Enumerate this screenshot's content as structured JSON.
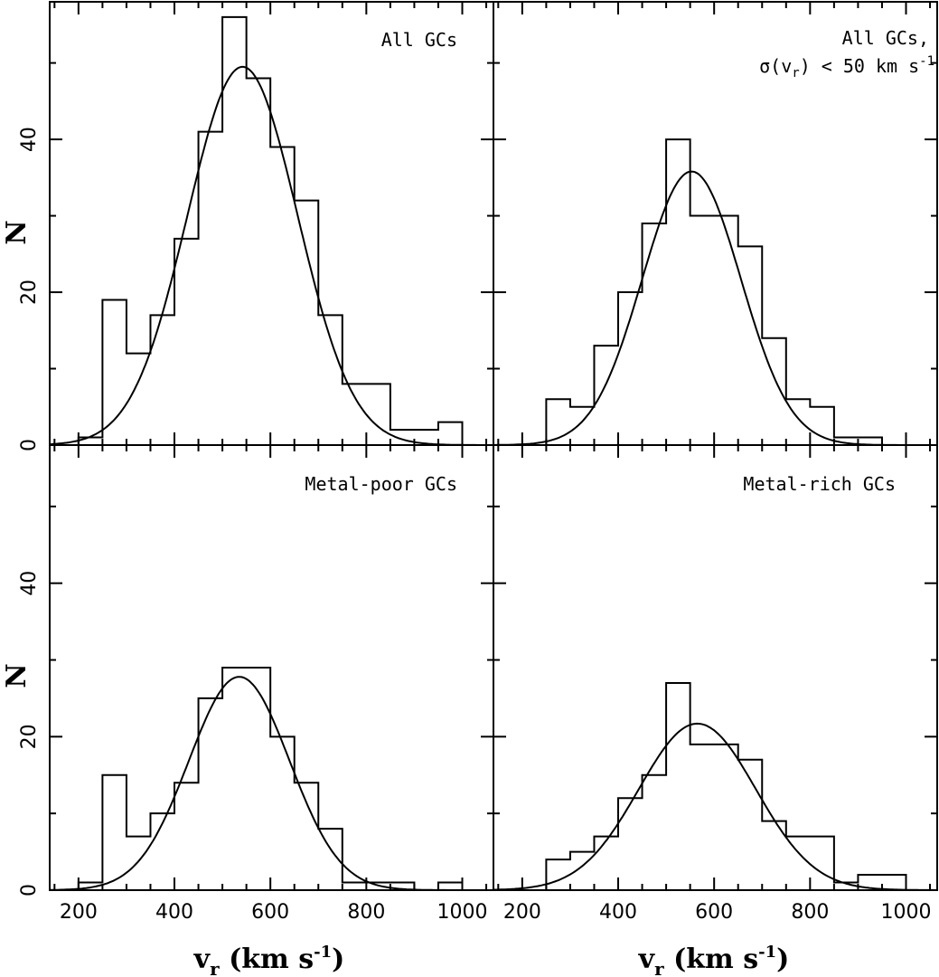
{
  "chart_data": [
    {
      "type": "bar",
      "subtype": "histogram-with-gaussian-fit",
      "label_lines": [
        "All GCs"
      ],
      "bin_width": 50,
      "bin_starts": [
        200,
        250,
        300,
        350,
        400,
        450,
        500,
        550,
        600,
        650,
        700,
        750,
        800,
        850,
        900,
        950
      ],
      "counts": [
        1,
        19,
        12,
        17,
        27,
        41,
        56,
        48,
        39,
        32,
        17,
        8,
        8,
        2,
        2,
        3
      ],
      "fit": {
        "type": "gaussian",
        "mean": 542,
        "sigma": 115,
        "amplitude": 49.5
      }
    },
    {
      "type": "bar",
      "subtype": "histogram-with-gaussian-fit",
      "label_lines": [
        "All GCs,",
        "σ(v",
        "r",
        ") < 50 km s",
        "-1"
      ],
      "bin_width": 50,
      "bin_starts": [
        200,
        250,
        300,
        350,
        400,
        450,
        500,
        550,
        600,
        650,
        700,
        750,
        800,
        850,
        900,
        950
      ],
      "counts": [
        0,
        6,
        5,
        13,
        20,
        29,
        40,
        30,
        30,
        26,
        14,
        6,
        5,
        1,
        1,
        0
      ],
      "fit": {
        "type": "gaussian",
        "mean": 553,
        "sigma": 103,
        "amplitude": 35.8
      }
    },
    {
      "type": "bar",
      "subtype": "histogram-with-gaussian-fit",
      "label_lines": [
        "Metal-poor GCs"
      ],
      "bin_width": 50,
      "bin_starts": [
        200,
        250,
        300,
        350,
        400,
        450,
        500,
        550,
        600,
        650,
        700,
        750,
        800,
        850,
        900,
        950
      ],
      "counts": [
        1,
        15,
        7,
        10,
        14,
        25,
        29,
        29,
        20,
        14,
        8,
        1,
        1,
        1,
        0,
        1
      ],
      "fit": {
        "type": "gaussian",
        "mean": 535,
        "sigma": 105,
        "amplitude": 27.8
      }
    },
    {
      "type": "bar",
      "subtype": "histogram-with-gaussian-fit",
      "label_lines": [
        "Metal-rich GCs"
      ],
      "bin_width": 50,
      "bin_starts": [
        200,
        250,
        300,
        350,
        400,
        450,
        500,
        550,
        600,
        650,
        700,
        750,
        800,
        850,
        900,
        950
      ],
      "counts": [
        0,
        4,
        5,
        7,
        12,
        15,
        27,
        19,
        19,
        17,
        9,
        7,
        7,
        1,
        2,
        2
      ],
      "fit": {
        "type": "gaussian",
        "mean": 565,
        "sigma": 122,
        "amplitude": 21.7
      }
    }
  ],
  "axes": {
    "xlim": [
      140,
      1065
    ],
    "ylim": [
      0,
      58
    ],
    "x_ticks": [
      "200",
      "400",
      "600",
      "800",
      "1000"
    ],
    "x_tick_values": [
      200,
      400,
      600,
      800,
      1000
    ],
    "y_ticks": [
      "0",
      "20",
      "40"
    ],
    "y_tick_values": [
      0,
      20,
      40
    ],
    "x_minor_step": 50,
    "y_minor_step": 10,
    "ylabel": "N",
    "xlabel": {
      "main": "v",
      "sub": "r",
      "unit": " (km s",
      "sup": "-1",
      "close": ")"
    }
  }
}
